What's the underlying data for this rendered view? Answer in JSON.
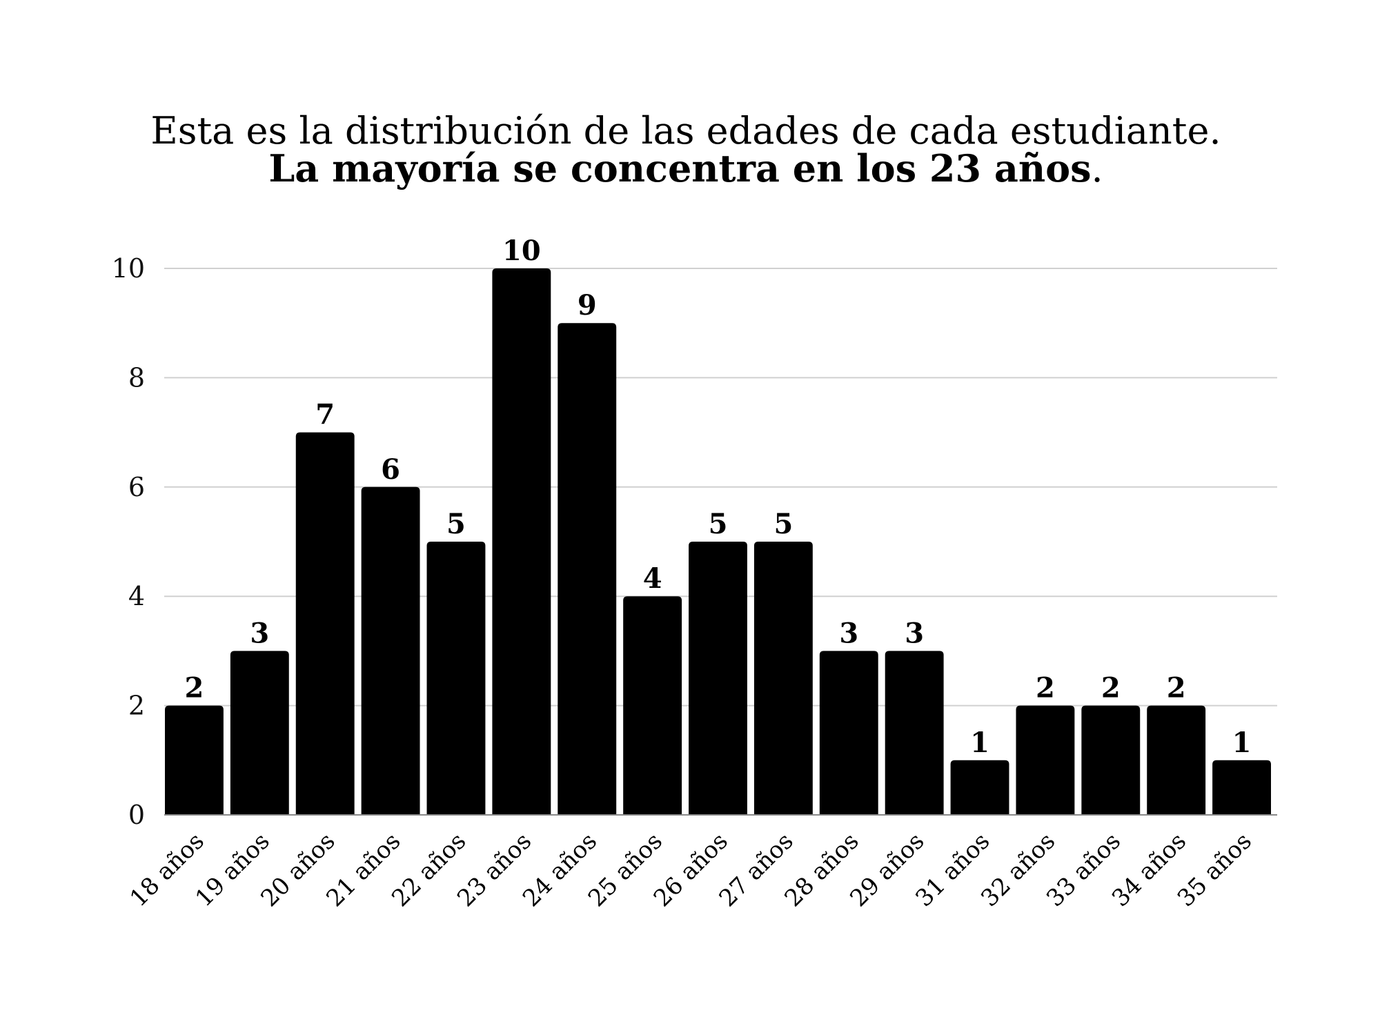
{
  "chart_data": {
    "type": "bar",
    "title": "Esta es la distribución de las edades de cada estudiante.",
    "subtitle_bold": "La mayoría se concentra en los 23 años",
    "subtitle_end": ".",
    "xlabel": "",
    "ylabel": "",
    "ylim": [
      0,
      10
    ],
    "yticks": [
      0,
      2,
      4,
      6,
      8,
      10
    ],
    "grid": true,
    "categories": [
      "18 años",
      "19 años",
      "20 años",
      "21 años",
      "22 años",
      "23 años",
      "24 años",
      "25 años",
      "26 años",
      "27 años",
      "28 años",
      "29 años",
      "31 años",
      "32 años",
      "33 años",
      "34 años",
      "35 años"
    ],
    "values": [
      2,
      3,
      7,
      6,
      5,
      10,
      9,
      4,
      5,
      5,
      3,
      3,
      1,
      2,
      2,
      2,
      1
    ],
    "data_labels": true,
    "bar_color": "#000000",
    "grid_color": "#d0d0d0",
    "x_label_rotation": "-45deg"
  }
}
